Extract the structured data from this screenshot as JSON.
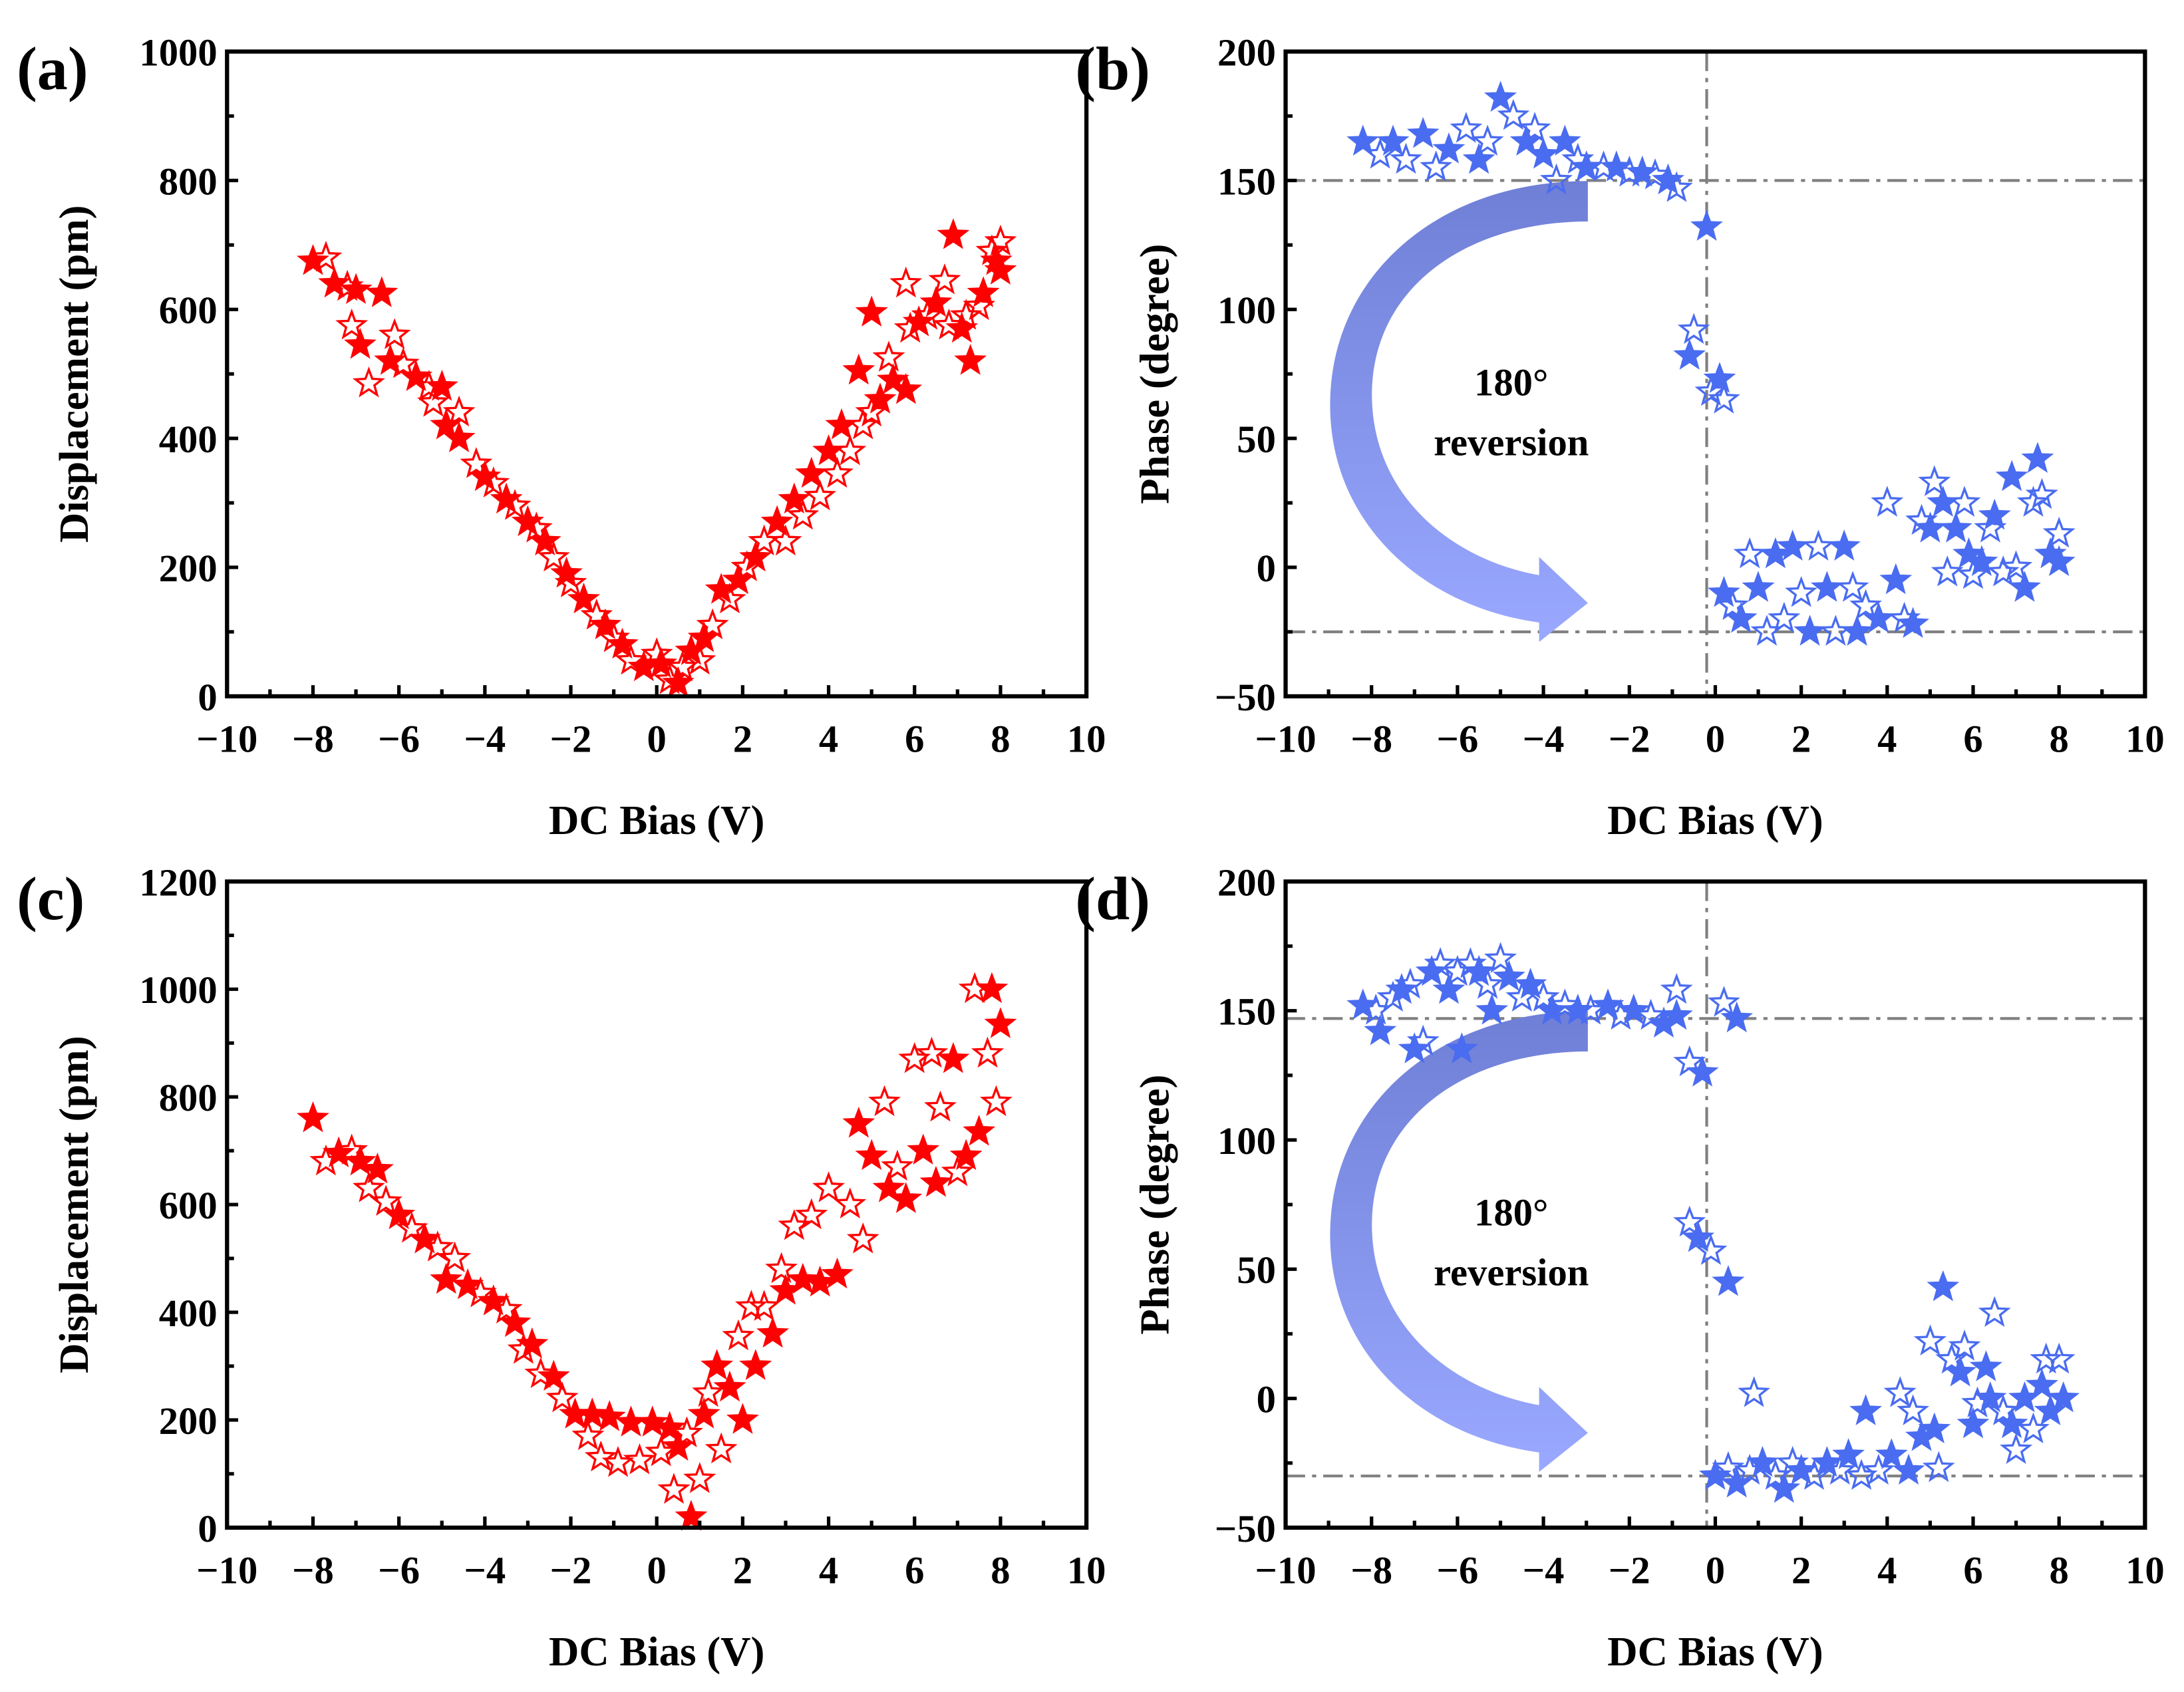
{
  "colors": {
    "red": "#ff0000",
    "blue": "#4a6cf0",
    "ref_line": "#808080",
    "arrow_top": "#6f7fd6",
    "arrow_bottom": "#9aa9ff"
  },
  "chart_data": [
    {
      "panel_label": "(a)",
      "type": "scatter",
      "marker": "star",
      "color": "#ff0000",
      "xlabel": "DC Bias (V)",
      "ylabel": "Displacement (pm)",
      "xlim": [
        -10,
        10
      ],
      "ylim": [
        0,
        1000
      ],
      "x_ticks": [
        "−10",
        "−8",
        "−6",
        "−4",
        "−2",
        "0",
        "2",
        "4",
        "6",
        "8",
        "10"
      ],
      "y_ticks": [
        "0",
        "200",
        "400",
        "600",
        "800",
        "1000"
      ],
      "points": [
        [
          -8,
          675
        ],
        [
          -7.7,
          680
        ],
        [
          -7.5,
          640
        ],
        [
          -7.2,
          635
        ],
        [
          -7,
          630
        ],
        [
          -7.1,
          575
        ],
        [
          -6.9,
          545
        ],
        [
          -6.7,
          485
        ],
        [
          -6.4,
          625
        ],
        [
          -6.1,
          560
        ],
        [
          -6.2,
          520
        ],
        [
          -5.9,
          515
        ],
        [
          -5.6,
          495
        ],
        [
          -5.3,
          480
        ],
        [
          -5,
          480
        ],
        [
          -5.2,
          455
        ],
        [
          -4.9,
          420
        ],
        [
          -4.6,
          440
        ],
        [
          -4.6,
          400
        ],
        [
          -4.2,
          360
        ],
        [
          -4,
          340
        ],
        [
          -3.8,
          330
        ],
        [
          -3.5,
          305
        ],
        [
          -3.3,
          295
        ],
        [
          -3,
          270
        ],
        [
          -2.8,
          260
        ],
        [
          -2.6,
          240
        ],
        [
          -2.4,
          215
        ],
        [
          -2.1,
          190
        ],
        [
          -2,
          175
        ],
        [
          -1.7,
          150
        ],
        [
          -1.4,
          125
        ],
        [
          -1.2,
          110
        ],
        [
          -1,
          90
        ],
        [
          -0.8,
          80
        ],
        [
          -0.6,
          55
        ],
        [
          -0.3,
          45
        ],
        [
          0,
          65
        ],
        [
          0.1,
          50
        ],
        [
          0.3,
          25
        ],
        [
          0.5,
          20
        ],
        [
          0.6,
          45
        ],
        [
          0.8,
          70
        ],
        [
          1,
          55
        ],
        [
          1.1,
          90
        ],
        [
          1.3,
          110
        ],
        [
          1.5,
          165
        ],
        [
          1.7,
          150
        ],
        [
          1.9,
          180
        ],
        [
          2.1,
          200
        ],
        [
          2.3,
          215
        ],
        [
          2.5,
          240
        ],
        [
          2.8,
          270
        ],
        [
          3,
          240
        ],
        [
          3.2,
          305
        ],
        [
          3.4,
          280
        ],
        [
          3.6,
          345
        ],
        [
          3.8,
          310
        ],
        [
          4,
          380
        ],
        [
          4.2,
          345
        ],
        [
          4.3,
          420
        ],
        [
          4.5,
          380
        ],
        [
          4.7,
          505
        ],
        [
          4.8,
          420
        ],
        [
          5,
          595
        ],
        [
          5,
          440
        ],
        [
          5.2,
          460
        ],
        [
          5.4,
          525
        ],
        [
          5.5,
          490
        ],
        [
          5.8,
          640
        ],
        [
          5.8,
          475
        ],
        [
          5.9,
          570
        ],
        [
          6.1,
          580
        ],
        [
          6.3,
          590
        ],
        [
          6.5,
          610
        ],
        [
          6.7,
          645
        ],
        [
          6.9,
          715
        ],
        [
          6.8,
          575
        ],
        [
          7.1,
          570
        ],
        [
          7.2,
          590
        ],
        [
          7.3,
          520
        ],
        [
          7.5,
          605
        ],
        [
          7.6,
          625
        ],
        [
          7.8,
          690
        ],
        [
          7.9,
          675
        ],
        [
          8,
          705
        ],
        [
          8,
          660
        ]
      ]
    },
    {
      "panel_label": "(b)",
      "type": "scatter",
      "marker": "star",
      "color": "#4a6cf0",
      "xlabel": "DC Bias (V)",
      "ylabel": "Phase (degree)",
      "xlim": [
        -10,
        10
      ],
      "ylim": [
        -50,
        200
      ],
      "x_ticks": [
        "−10",
        "−8",
        "−6",
        "−4",
        "−2",
        "0",
        "2",
        "4",
        "6",
        "8",
        "10"
      ],
      "y_ticks": [
        "−50",
        "0",
        "50",
        "100",
        "150",
        "200"
      ],
      "ref_lines": {
        "h": [
          150,
          -25
        ],
        "v": [
          -0.2
        ]
      },
      "annotation": [
        "180°",
        "reversion"
      ],
      "points": [
        [
          -8.2,
          165
        ],
        [
          -7.8,
          160
        ],
        [
          -7.5,
          165
        ],
        [
          -7.2,
          158
        ],
        [
          -6.8,
          168
        ],
        [
          -6.5,
          155
        ],
        [
          -6.2,
          162
        ],
        [
          -5.8,
          170
        ],
        [
          -5.5,
          158
        ],
        [
          -5.3,
          165
        ],
        [
          -5,
          182
        ],
        [
          -4.7,
          175
        ],
        [
          -4.4,
          165
        ],
        [
          -4.2,
          170
        ],
        [
          -4,
          160
        ],
        [
          -3.7,
          150
        ],
        [
          -3.5,
          165
        ],
        [
          -3.2,
          158
        ],
        [
          -3,
          155
        ],
        [
          -2.6,
          155
        ],
        [
          -2.3,
          155
        ],
        [
          -2,
          153
        ],
        [
          -1.7,
          153
        ],
        [
          -1.4,
          152
        ],
        [
          -1.1,
          150
        ],
        [
          -0.9,
          147
        ],
        [
          -0.2,
          132
        ],
        [
          -0.5,
          92
        ],
        [
          -0.6,
          82
        ],
        [
          -0.1,
          68
        ],
        [
          0.1,
          73
        ],
        [
          0.2,
          65
        ],
        [
          0.2,
          -10
        ],
        [
          0.4,
          -15
        ],
        [
          0.6,
          -20
        ],
        [
          0.8,
          5
        ],
        [
          1,
          -8
        ],
        [
          1.2,
          -25
        ],
        [
          1.4,
          5
        ],
        [
          1.6,
          -20
        ],
        [
          1.8,
          8
        ],
        [
          2,
          -10
        ],
        [
          2.2,
          -25
        ],
        [
          2.4,
          8
        ],
        [
          2.6,
          -8
        ],
        [
          2.8,
          -25
        ],
        [
          3,
          8
        ],
        [
          3.2,
          -8
        ],
        [
          3.3,
          -25
        ],
        [
          3.5,
          -15
        ],
        [
          3.8,
          -20
        ],
        [
          4,
          25
        ],
        [
          4.2,
          -5
        ],
        [
          4.4,
          -20
        ],
        [
          4.6,
          -22
        ],
        [
          4.8,
          18
        ],
        [
          5,
          15
        ],
        [
          5.1,
          33
        ],
        [
          5.3,
          25
        ],
        [
          5.4,
          -2
        ],
        [
          5.6,
          15
        ],
        [
          5.8,
          25
        ],
        [
          5.9,
          5
        ],
        [
          6,
          -3
        ],
        [
          6.2,
          2
        ],
        [
          6.4,
          15
        ],
        [
          6.5,
          20
        ],
        [
          6.7,
          -2
        ],
        [
          6.9,
          35
        ],
        [
          7,
          0
        ],
        [
          7.2,
          -8
        ],
        [
          7.4,
          25
        ],
        [
          7.5,
          42
        ],
        [
          7.6,
          28
        ],
        [
          7.8,
          5
        ],
        [
          8,
          13
        ],
        [
          8,
          2
        ]
      ]
    },
    {
      "panel_label": "(c)",
      "type": "scatter",
      "marker": "star",
      "color": "#ff0000",
      "xlabel": "DC Bias (V)",
      "ylabel": "Displacement (pm)",
      "xlim": [
        -10,
        10
      ],
      "ylim": [
        0,
        1200
      ],
      "x_ticks": [
        "−10",
        "−8",
        "−6",
        "−4",
        "−2",
        "0",
        "2",
        "4",
        "6",
        "8",
        "10"
      ],
      "y_ticks": [
        "0",
        "200",
        "400",
        "600",
        "800",
        "1000",
        "1200"
      ],
      "points": [
        [
          -8,
          760
        ],
        [
          -7.7,
          680
        ],
        [
          -7.4,
          695
        ],
        [
          -7.1,
          700
        ],
        [
          -6.9,
          680
        ],
        [
          -6.7,
          630
        ],
        [
          -6.5,
          665
        ],
        [
          -6.3,
          605
        ],
        [
          -6,
          580
        ],
        [
          -5.7,
          555
        ],
        [
          -5.4,
          535
        ],
        [
          -5.1,
          520
        ],
        [
          -4.9,
          460
        ],
        [
          -4.7,
          500
        ],
        [
          -4.4,
          450
        ],
        [
          -4.1,
          435
        ],
        [
          -3.8,
          420
        ],
        [
          -3.5,
          405
        ],
        [
          -3.3,
          380
        ],
        [
          -3.1,
          330
        ],
        [
          -2.9,
          340
        ],
        [
          -2.7,
          285
        ],
        [
          -2.4,
          280
        ],
        [
          -2.2,
          240
        ],
        [
          -1.9,
          210
        ],
        [
          -1.6,
          170
        ],
        [
          -1.5,
          210
        ],
        [
          -1.3,
          130
        ],
        [
          -1.1,
          205
        ],
        [
          -0.9,
          120
        ],
        [
          -0.6,
          195
        ],
        [
          -0.4,
          125
        ],
        [
          -0.1,
          195
        ],
        [
          0.1,
          140
        ],
        [
          0.3,
          185
        ],
        [
          0.4,
          70
        ],
        [
          0.5,
          150
        ],
        [
          0.7,
          175
        ],
        [
          0.8,
          20
        ],
        [
          1,
          90
        ],
        [
          1.1,
          210
        ],
        [
          1.2,
          250
        ],
        [
          1.4,
          300
        ],
        [
          1.5,
          145
        ],
        [
          1.7,
          260
        ],
        [
          1.9,
          355
        ],
        [
          2,
          200
        ],
        [
          2.2,
          410
        ],
        [
          2.3,
          300
        ],
        [
          2.5,
          410
        ],
        [
          2.7,
          360
        ],
        [
          2.9,
          480
        ],
        [
          3,
          440
        ],
        [
          3.2,
          560
        ],
        [
          3.4,
          460
        ],
        [
          3.6,
          580
        ],
        [
          3.8,
          455
        ],
        [
          4,
          630
        ],
        [
          4.2,
          470
        ],
        [
          4.5,
          600
        ],
        [
          4.7,
          750
        ],
        [
          4.8,
          535
        ],
        [
          5,
          690
        ],
        [
          5.3,
          790
        ],
        [
          5.4,
          630
        ],
        [
          5.6,
          670
        ],
        [
          5.8,
          610
        ],
        [
          6,
          870
        ],
        [
          6.2,
          700
        ],
        [
          6.4,
          880
        ],
        [
          6.5,
          640
        ],
        [
          6.6,
          780
        ],
        [
          6.9,
          870
        ],
        [
          7,
          660
        ],
        [
          7.2,
          690
        ],
        [
          7.4,
          1000
        ],
        [
          7.5,
          735
        ],
        [
          7.7,
          880
        ],
        [
          7.8,
          1000
        ],
        [
          7.9,
          790
        ],
        [
          8,
          935
        ]
      ]
    },
    {
      "panel_label": "(d)",
      "type": "scatter",
      "marker": "star",
      "color": "#4a6cf0",
      "xlabel": "DC Bias (V)",
      "ylabel": "Phase (degree)",
      "xlim": [
        -10,
        10
      ],
      "ylim": [
        -50,
        200
      ],
      "x_ticks": [
        "−10",
        "−8",
        "−6",
        "−4",
        "−2",
        "0",
        "2",
        "4",
        "6",
        "8",
        "10"
      ],
      "y_ticks": [
        "−50",
        "0",
        "50",
        "100",
        "150",
        "200"
      ],
      "ref_lines": {
        "h": [
          147,
          -30
        ],
        "v": [
          -0.2
        ]
      },
      "annotation": [
        "180°",
        "reversion"
      ],
      "points": [
        [
          -8.2,
          152
        ],
        [
          -7.9,
          150
        ],
        [
          -7.8,
          142
        ],
        [
          -7.5,
          155
        ],
        [
          -7.3,
          158
        ],
        [
          -7.1,
          160
        ],
        [
          -7,
          135
        ],
        [
          -6.8,
          138
        ],
        [
          -6.6,
          165
        ],
        [
          -6.4,
          168
        ],
        [
          -6.2,
          158
        ],
        [
          -6,
          165
        ],
        [
          -5.9,
          135
        ],
        [
          -5.7,
          168
        ],
        [
          -5.5,
          165
        ],
        [
          -5.3,
          160
        ],
        [
          -5.2,
          150
        ],
        [
          -5,
          170
        ],
        [
          -4.8,
          163
        ],
        [
          -4.5,
          155
        ],
        [
          -4.3,
          160
        ],
        [
          -4,
          155
        ],
        [
          -3.8,
          150
        ],
        [
          -3.5,
          152
        ],
        [
          -3.2,
          150
        ],
        [
          -2.9,
          150
        ],
        [
          -2.5,
          152
        ],
        [
          -2.2,
          148
        ],
        [
          -1.9,
          150
        ],
        [
          -1.5,
          148
        ],
        [
          -1.2,
          145
        ],
        [
          -0.9,
          158
        ],
        [
          -0.9,
          148
        ],
        [
          -0.6,
          130
        ],
        [
          -0.3,
          126
        ],
        [
          0.2,
          153
        ],
        [
          0.5,
          147
        ],
        [
          -0.6,
          68
        ],
        [
          -0.4,
          62
        ],
        [
          -0.1,
          57
        ],
        [
          0.3,
          45
        ],
        [
          0.9,
          2
        ],
        [
          0,
          -30
        ],
        [
          0.3,
          -27
        ],
        [
          0.5,
          -33
        ],
        [
          0.8,
          -28
        ],
        [
          1.1,
          -25
        ],
        [
          1.4,
          -30
        ],
        [
          1.6,
          -35
        ],
        [
          1.8,
          -25
        ],
        [
          2,
          -28
        ],
        [
          2.3,
          -30
        ],
        [
          2.6,
          -25
        ],
        [
          2.9,
          -28
        ],
        [
          3.1,
          -22
        ],
        [
          3.4,
          -30
        ],
        [
          3.5,
          -5
        ],
        [
          3.8,
          -28
        ],
        [
          4.1,
          -22
        ],
        [
          4.3,
          2
        ],
        [
          4.5,
          -28
        ],
        [
          4.6,
          -5
        ],
        [
          4.8,
          -15
        ],
        [
          5,
          22
        ],
        [
          5.1,
          -12
        ],
        [
          5.2,
          -27
        ],
        [
          5.3,
          43
        ],
        [
          5.5,
          15
        ],
        [
          5.7,
          10
        ],
        [
          5.8,
          20
        ],
        [
          6,
          -10
        ],
        [
          6.1,
          -2
        ],
        [
          6.3,
          12
        ],
        [
          6.5,
          33
        ],
        [
          6.4,
          0
        ],
        [
          6.7,
          -5
        ],
        [
          6.9,
          -10
        ],
        [
          7,
          -20
        ],
        [
          7.2,
          0
        ],
        [
          7.4,
          -12
        ],
        [
          7.6,
          5
        ],
        [
          7.7,
          15
        ],
        [
          7.8,
          -5
        ],
        [
          8,
          15
        ],
        [
          8.1,
          0
        ]
      ]
    }
  ]
}
